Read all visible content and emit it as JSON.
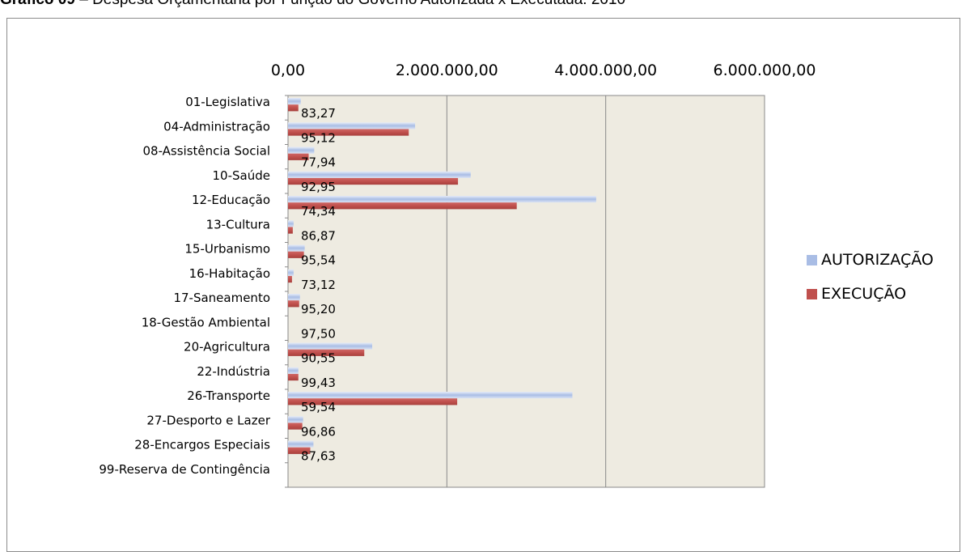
{
  "page_title": {
    "prefix": "Gráfico 09",
    "text": "– Despesa Orçamentária por Função do Governo Autorizada x Executada: 2010"
  },
  "chart_data": {
    "type": "bar",
    "orientation": "horizontal",
    "x_axis_position": "top",
    "xlim": [
      0,
      6000000
    ],
    "x_ticks": [
      0,
      2000000,
      4000000,
      6000000
    ],
    "x_tick_labels": [
      "0,00",
      "2.000.000,00",
      "4.000.000,00",
      "6.000.000,00"
    ],
    "grid": true,
    "plot_background": "#eeebe1",
    "legend_position": "right",
    "categories": [
      "01-Legislativa",
      "04-Administração",
      "08-Assistência Social",
      "10-Saúde",
      "12-Educação",
      "13-Cultura",
      "15-Urbanismo",
      "16-Habitação",
      "17-Saneamento",
      "18-Gestão Ambiental",
      "20-Agricultura",
      "22-Indústria",
      "26-Transporte",
      "27-Desporto e Lazer",
      "28-Encargos Especiais",
      "99-Reserva de Contingência"
    ],
    "series": [
      {
        "name": "AUTORIZAÇÃO",
        "color": "#a9bde5",
        "values": [
          160000,
          1600000,
          330000,
          2300000,
          3880000,
          70000,
          210000,
          70000,
          150000,
          0,
          1060000,
          130000,
          3580000,
          190000,
          320000,
          0
        ]
      },
      {
        "name": "EXECUÇÃO",
        "color": "#c0504d",
        "values": [
          130000,
          1520000,
          260000,
          2140000,
          2880000,
          60000,
          200000,
          50000,
          140000,
          0,
          960000,
          130000,
          2130000,
          180000,
          280000,
          0
        ]
      }
    ],
    "data_labels": [
      "83,27",
      "95,12",
      "77,94",
      "92,95",
      "74,34",
      "86,87",
      "95,54",
      "73,12",
      "95,20",
      "97,50",
      "90,55",
      "99,43",
      "59,54",
      "96,86",
      "87,63",
      ""
    ]
  }
}
